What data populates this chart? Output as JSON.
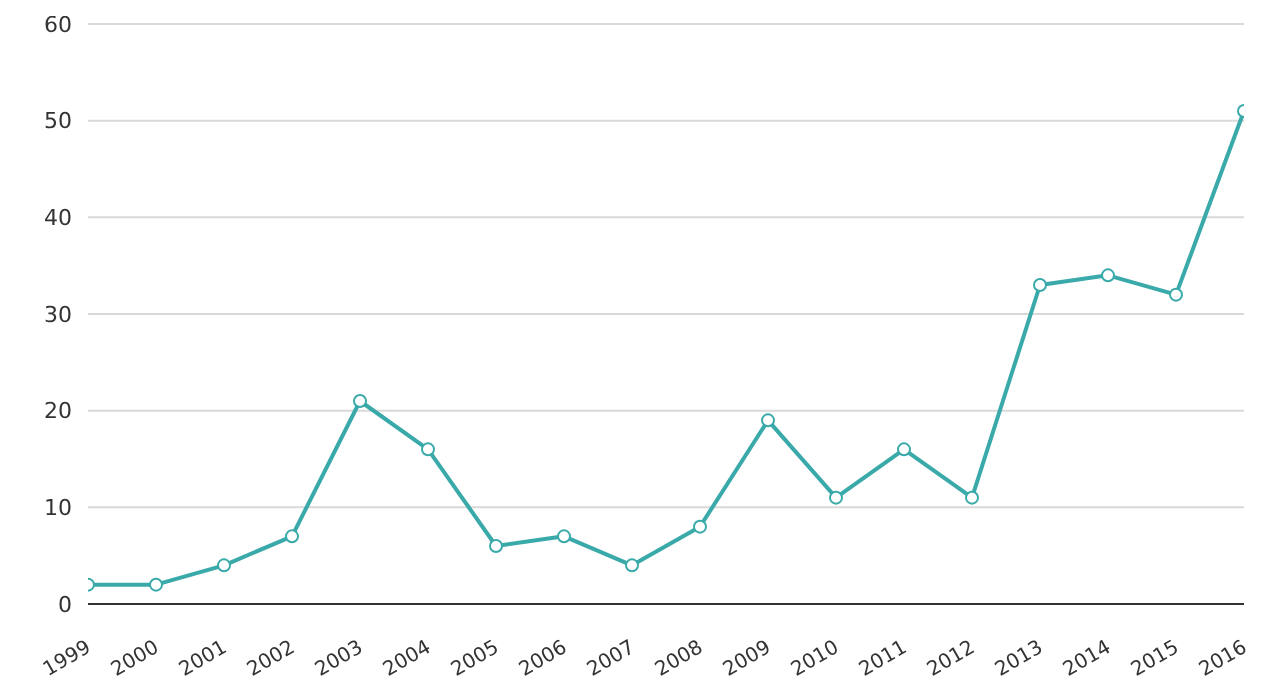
{
  "chart_data": {
    "type": "line",
    "categories": [
      "1999",
      "2000",
      "2001",
      "2002",
      "2003",
      "2004",
      "2005",
      "2006",
      "2007",
      "2008",
      "2009",
      "2010",
      "2011",
      "2012",
      "2013",
      "2014",
      "2015",
      "2016"
    ],
    "series": [
      {
        "color": "#3aa9a9",
        "values": [
          2,
          2,
          4,
          7,
          21,
          16,
          6,
          7,
          4,
          8,
          19,
          11,
          16,
          11,
          33,
          34,
          32,
          51
        ]
      }
    ],
    "ylim": [
      0,
      60
    ],
    "yticks": [
      0,
      10,
      20,
      30,
      40,
      50,
      60
    ],
    "grid": "y",
    "marker": "circle",
    "line_style": "solid"
  }
}
